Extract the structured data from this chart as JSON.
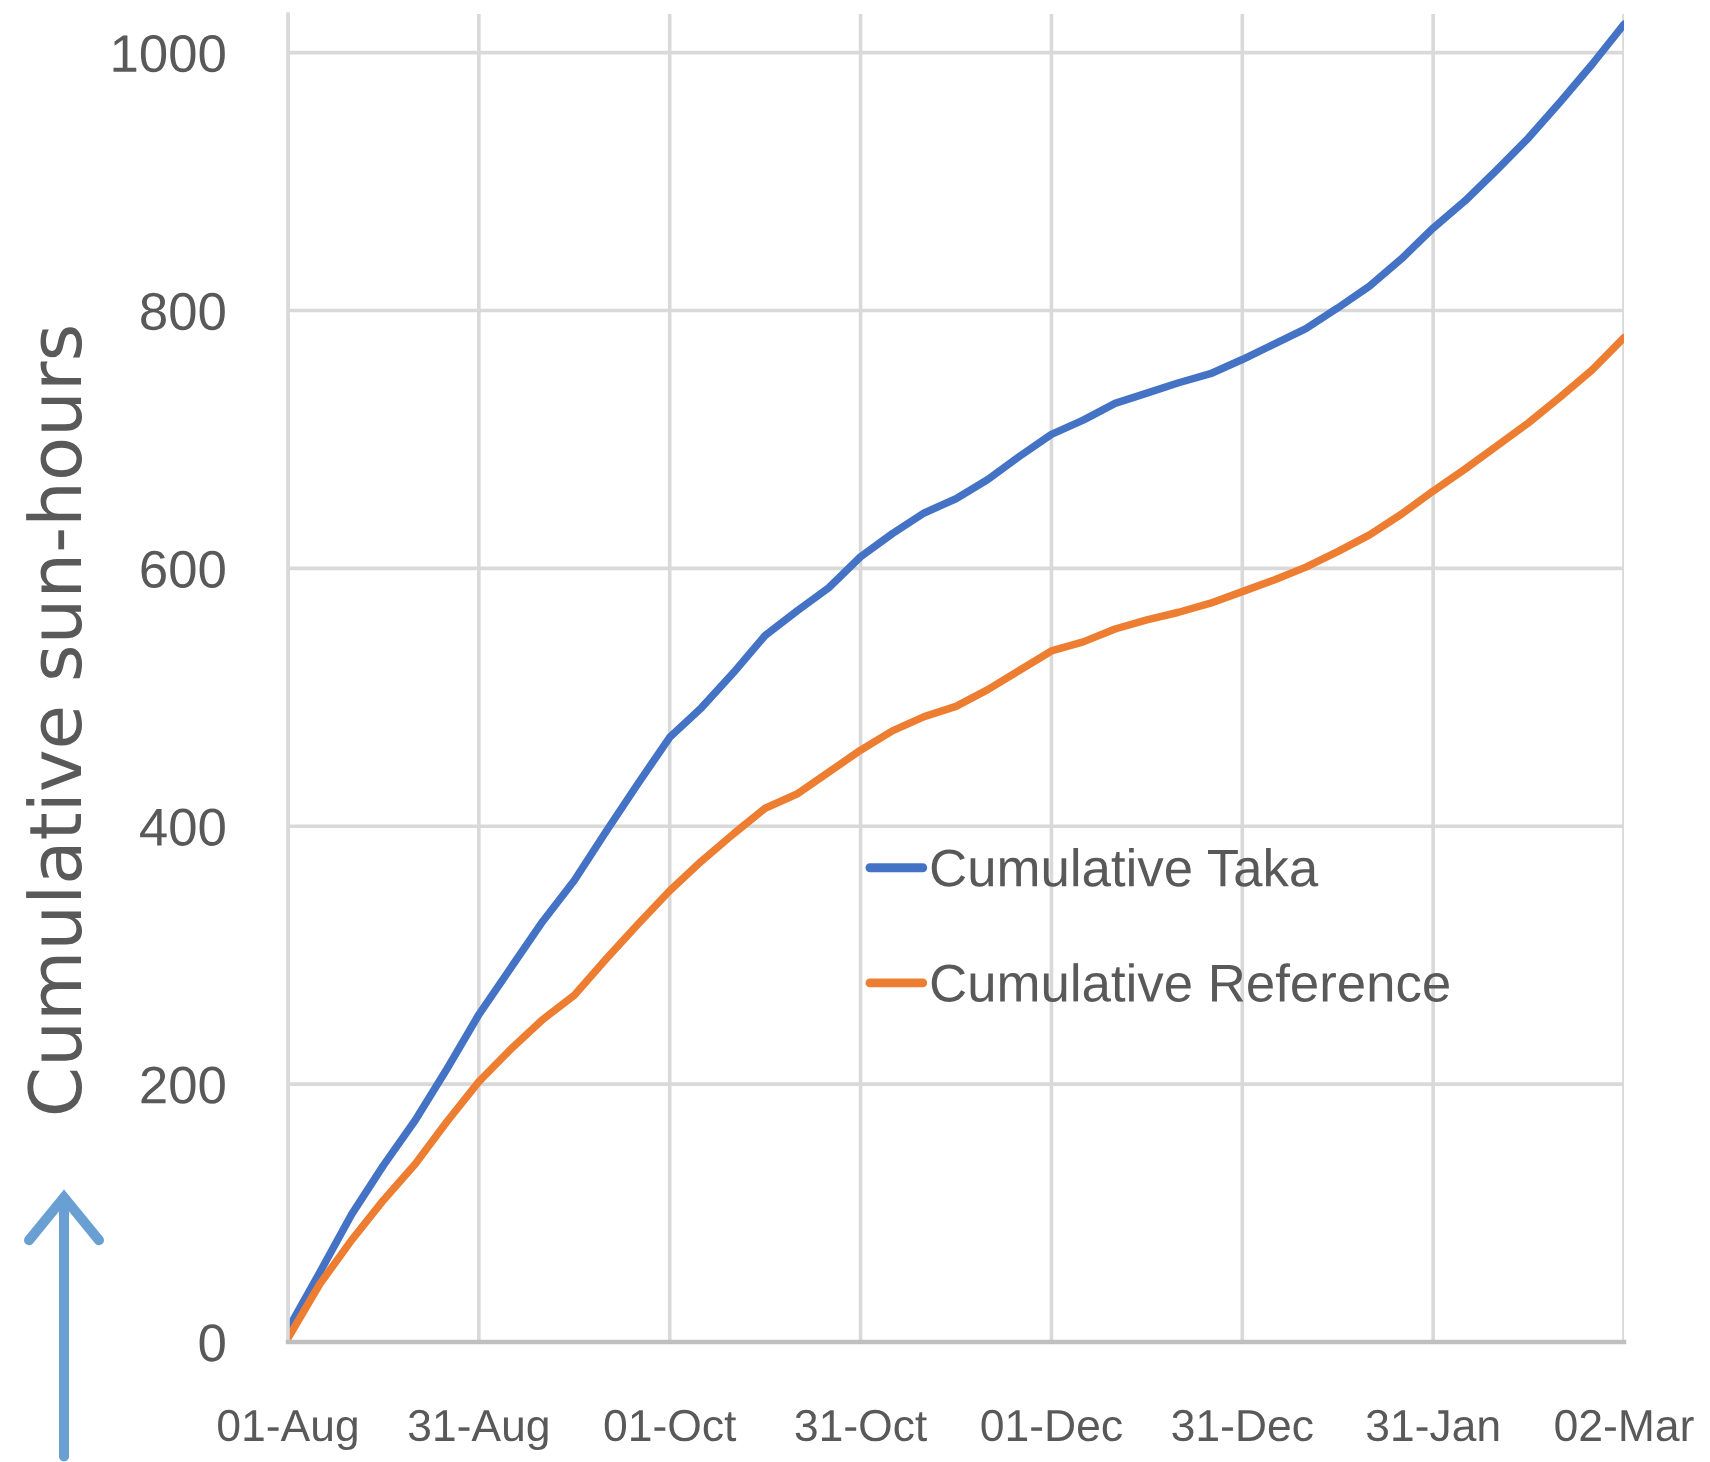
{
  "chart_data": {
    "type": "line",
    "ylabel": "Cumulative sun-hours",
    "categories": [
      "01-Aug",
      null,
      null,
      null,
      null,
      null,
      "31-Aug",
      null,
      null,
      null,
      null,
      null,
      "01-Oct",
      null,
      null,
      null,
      null,
      null,
      "31-Oct",
      null,
      null,
      null,
      null,
      null,
      "01-Dec",
      null,
      null,
      null,
      null,
      null,
      "31-Dec",
      null,
      null,
      null,
      null,
      null,
      "31-Jan",
      null,
      null,
      null,
      null,
      null,
      "02-Mar"
    ],
    "series": [
      {
        "name": "Cumulative Taka",
        "color": "#4472c4",
        "values": [
          10,
          54,
          99,
          137,
          172,
          212,
          254,
          290,
          326,
          358,
          396,
          433,
          469,
          492,
          519,
          548,
          567,
          585,
          609,
          627,
          643,
          654,
          669,
          687,
          704,
          715,
          728,
          736,
          744,
          751,
          762,
          774,
          786,
          802,
          819,
          840,
          864,
          885,
          909,
          934,
          962,
          991,
          1022
        ]
      },
      {
        "name": "Cumulative Reference",
        "color": "#ed7d31",
        "values": [
          3,
          45,
          79,
          110,
          138,
          171,
          202,
          227,
          250,
          269,
          297,
          324,
          350,
          373,
          394,
          414,
          425,
          442,
          459,
          474,
          485,
          493,
          506,
          521,
          536,
          543,
          553,
          560,
          566,
          573,
          582,
          591,
          601,
          613,
          626,
          642,
          660,
          677,
          695,
          713,
          733,
          754,
          779
        ]
      }
    ],
    "ylim": [
      0,
      1030
    ],
    "yticks": [
      0,
      200,
      400,
      600,
      800,
      1000
    ],
    "grid": true,
    "legend": "right"
  }
}
